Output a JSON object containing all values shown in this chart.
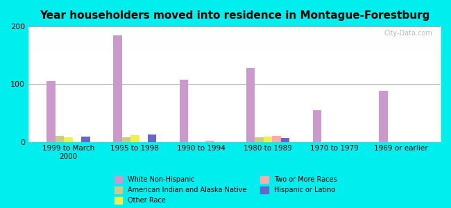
{
  "title": "Year householders moved into residence in Montague-Forestburg",
  "categories": [
    "1999 to March\n2000",
    "1995 to 1998",
    "1990 to 1994",
    "1980 to 1989",
    "1970 to 1979",
    "1969 or earlier"
  ],
  "series": {
    "White Non-Hispanic": [
      105,
      185,
      108,
      128,
      55,
      88
    ],
    "American Indian and Alaska Native": [
      10,
      8,
      0,
      8,
      0,
      0
    ],
    "Other Race": [
      8,
      11,
      0,
      9,
      0,
      0
    ],
    "Two or More Races": [
      0,
      0,
      2,
      10,
      0,
      0
    ],
    "Hispanic or Latino": [
      9,
      13,
      0,
      7,
      0,
      0
    ]
  },
  "colors": {
    "White Non-Hispanic": "#cc99cc",
    "American Indian and Alaska Native": "#cccc88",
    "Other Race": "#eeee55",
    "Two or More Races": "#ffaaaa",
    "Hispanic or Latino": "#6666cc"
  },
  "ylim": [
    0,
    200
  ],
  "yticks": [
    0,
    100,
    200
  ],
  "bar_width": 0.13,
  "background_color": "#00eeee",
  "plot_bg_top": "#ffffff",
  "plot_bg_bottom": "#cceecc",
  "watermark": "City-Data.com"
}
